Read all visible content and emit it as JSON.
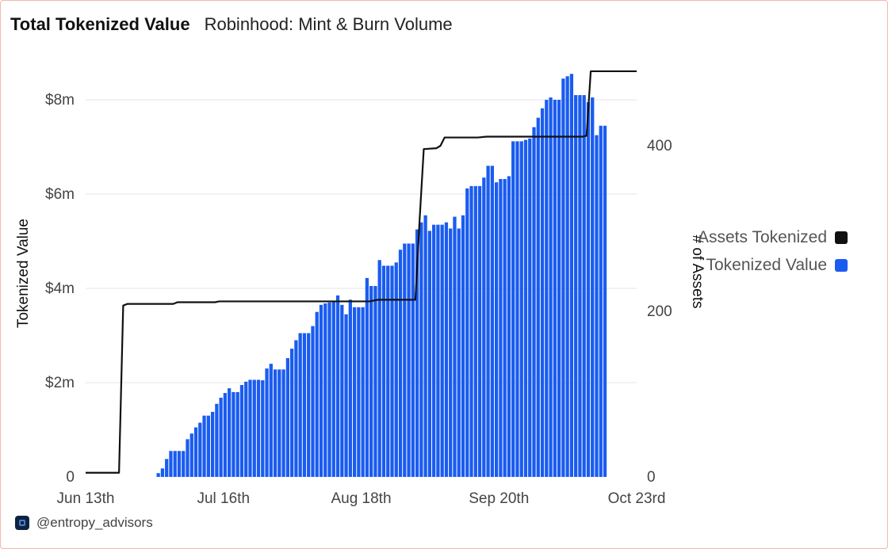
{
  "header": {
    "active_tab": "Total Tokenized Value",
    "tab_2": "Robinhood: Mint & Burn Volume"
  },
  "footer": {
    "handle": "@entropy_advisors",
    "logo_icon": "entropy-logo-icon"
  },
  "legend": [
    {
      "label": "Assets Tokenized",
      "color": "#111111"
    },
    {
      "label": "Tokenized Value",
      "color": "#1a5cf0"
    }
  ],
  "chart_data": {
    "type": "bar",
    "ylabel": "Tokenized Value",
    "y2label": "# of Assets",
    "ylim": [
      0,
      8.5
    ],
    "y_ticks": [
      "0",
      "$2m",
      "$4m",
      "$6m",
      "$8m"
    ],
    "y2lim": [
      0,
      480
    ],
    "y2_ticks": [
      "0",
      "200",
      "400"
    ],
    "x_ticks": [
      "Jun 13th",
      "Jul 16th",
      "Aug 18th",
      "Sep 20th",
      "Oct 23rd"
    ],
    "grid": true,
    "legend_position": "right",
    "series": [
      {
        "name": "Tokenized Value",
        "kind": "bar",
        "color": "#1a5cf0",
        "unit": "$m",
        "start_date": "2025-06-30",
        "values": [
          0.08,
          0.18,
          0.38,
          0.55,
          0.55,
          0.55,
          0.55,
          0.8,
          0.92,
          1.05,
          1.15,
          1.3,
          1.3,
          1.38,
          1.55,
          1.68,
          1.78,
          1.88,
          1.8,
          1.8,
          1.95,
          2.02,
          2.06,
          2.06,
          2.06,
          2.05,
          2.3,
          2.4,
          2.28,
          2.28,
          2.28,
          2.52,
          2.72,
          2.9,
          3.05,
          3.05,
          3.05,
          3.2,
          3.5,
          3.65,
          3.68,
          3.7,
          3.72,
          3.85,
          3.65,
          3.45,
          3.76,
          3.6,
          3.6,
          3.6,
          4.22,
          4.05,
          4.05,
          4.6,
          4.48,
          4.48,
          4.48,
          4.55,
          4.82,
          4.95,
          4.95,
          4.95,
          5.25,
          5.4,
          5.55,
          5.22,
          5.35,
          5.35,
          5.35,
          5.4,
          5.27,
          5.52,
          5.27,
          5.55,
          6.12,
          6.17,
          6.17,
          6.17,
          6.35,
          6.6,
          6.6,
          6.25,
          6.32,
          6.32,
          6.38,
          7.12,
          7.12,
          7.12,
          7.15,
          7.18,
          7.42,
          7.62,
          7.82,
          8.0,
          8.05,
          8.0,
          8.0,
          8.45,
          8.5,
          8.55,
          8.1,
          8.1,
          8.1,
          7.95,
          8.05,
          7.25,
          7.45,
          7.45
        ]
      },
      {
        "name": "Assets Tokenized",
        "kind": "line",
        "color": "#111111",
        "x": [
          "2025-06-13",
          "2025-06-20",
          "2025-06-21",
          "2025-06-22",
          "2025-06-23",
          "2025-07-04",
          "2025-07-05",
          "2025-07-14",
          "2025-07-15",
          "2025-08-20",
          "2025-08-22",
          "2025-08-31",
          "2025-09-01",
          "2025-09-02",
          "2025-09-05",
          "2025-09-06",
          "2025-09-07",
          "2025-09-15",
          "2025-09-17",
          "2025-10-10",
          "2025-10-11",
          "2025-10-12",
          "2025-10-22",
          "2025-10-23"
        ],
        "y": [
          5,
          5,
          5,
          207,
          209,
          209,
          211,
          211,
          212,
          212,
          214,
          214,
          310,
          396,
          397,
          400,
          410,
          410,
          411,
          411,
          412,
          490,
          490,
          490
        ]
      }
    ]
  }
}
